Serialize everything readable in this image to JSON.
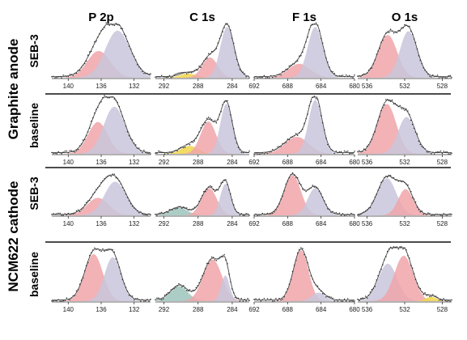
{
  "chart_data": {
    "type": "line",
    "description_free": true,
    "column_titles": [
      "P 2p",
      "C 1s",
      "F 1s",
      "O 1s"
    ],
    "row_labels": [
      "SEB-3",
      "baseline",
      "SEB-3",
      "baseline"
    ],
    "group_labels": [
      "Graphite anode",
      "NCM622 cathode"
    ],
    "component_colors": {
      "pink": "#f0a4a9",
      "lavender": "#c9c6dc",
      "yellow": "#f0d64a",
      "teal": "#9cc4bc"
    },
    "columns": [
      {
        "xlim": [
          142,
          130
        ],
        "ticks": [
          140,
          136,
          132
        ]
      },
      {
        "xlim": [
          293,
          282
        ],
        "ticks": [
          292,
          288,
          284
        ]
      },
      {
        "xlim": [
          692,
          680
        ],
        "ticks": [
          692,
          688,
          684,
          680
        ]
      },
      {
        "xlim": [
          537,
          527
        ],
        "ticks": [
          536,
          532,
          528
        ]
      }
    ],
    "panels": [
      {
        "row": 0,
        "col": 0,
        "components": [
          {
            "color": "pink",
            "center": 136.3,
            "height": 0.5,
            "width": 1.4
          },
          {
            "color": "lavender",
            "center": 134.0,
            "height": 0.88,
            "width": 1.5
          }
        ]
      },
      {
        "row": 0,
        "col": 1,
        "components": [
          {
            "color": "yellow",
            "center": 289.2,
            "height": 0.08,
            "width": 0.9
          },
          {
            "color": "pink",
            "center": 286.6,
            "height": 0.38,
            "width": 0.9
          },
          {
            "color": "lavender",
            "center": 284.6,
            "height": 0.95,
            "width": 0.8
          }
        ]
      },
      {
        "row": 0,
        "col": 2,
        "components": [
          {
            "color": "pink",
            "center": 686.6,
            "height": 0.26,
            "width": 1.3
          },
          {
            "color": "lavender",
            "center": 684.7,
            "height": 0.95,
            "width": 0.9
          }
        ]
      },
      {
        "row": 0,
        "col": 3,
        "components": [
          {
            "color": "pink",
            "center": 533.8,
            "height": 0.8,
            "width": 1.0
          },
          {
            "color": "lavender",
            "center": 531.6,
            "height": 0.87,
            "width": 0.9
          }
        ]
      },
      {
        "row": 1,
        "col": 0,
        "components": [
          {
            "color": "pink",
            "center": 136.4,
            "height": 0.56,
            "width": 1.2
          },
          {
            "color": "lavender",
            "center": 134.4,
            "height": 0.83,
            "width": 1.3
          }
        ]
      },
      {
        "row": 1,
        "col": 1,
        "components": [
          {
            "color": "yellow",
            "center": 289.0,
            "height": 0.14,
            "width": 1.0
          },
          {
            "color": "pink",
            "center": 286.8,
            "height": 0.57,
            "width": 0.9
          },
          {
            "color": "lavender",
            "center": 284.7,
            "height": 0.88,
            "width": 0.7
          }
        ]
      },
      {
        "row": 1,
        "col": 2,
        "components": [
          {
            "color": "pink",
            "center": 686.9,
            "height": 0.3,
            "width": 1.4
          },
          {
            "color": "lavender",
            "center": 684.7,
            "height": 0.95,
            "width": 0.8
          }
        ]
      },
      {
        "row": 1,
        "col": 3,
        "components": [
          {
            "color": "pink",
            "center": 533.9,
            "height": 0.88,
            "width": 1.0
          },
          {
            "color": "lavender",
            "center": 531.8,
            "height": 0.65,
            "width": 0.9
          }
        ]
      },
      {
        "row": 2,
        "col": 0,
        "components": [
          {
            "color": "pink",
            "center": 136.4,
            "height": 0.4,
            "width": 1.3
          },
          {
            "color": "lavender",
            "center": 134.3,
            "height": 0.77,
            "width": 1.3
          }
        ]
      },
      {
        "row": 2,
        "col": 1,
        "components": [
          {
            "color": "teal",
            "center": 290.2,
            "height": 0.17,
            "width": 1.0
          },
          {
            "color": "pink",
            "center": 286.7,
            "height": 0.62,
            "width": 0.9
          },
          {
            "color": "lavender",
            "center": 284.8,
            "height": 0.72,
            "width": 0.6
          }
        ]
      },
      {
        "row": 2,
        "col": 2,
        "components": [
          {
            "color": "pink",
            "center": 687.4,
            "height": 0.92,
            "width": 1.0
          },
          {
            "color": "lavender",
            "center": 684.7,
            "height": 0.62,
            "width": 0.9
          }
        ]
      },
      {
        "row": 2,
        "col": 3,
        "components": [
          {
            "color": "lavender",
            "center": 533.9,
            "height": 0.85,
            "width": 1.0
          },
          {
            "color": "pink",
            "center": 531.9,
            "height": 0.6,
            "width": 0.8
          }
        ]
      },
      {
        "row": 3,
        "col": 0,
        "components": [
          {
            "color": "pink",
            "center": 136.9,
            "height": 0.88,
            "width": 1.1
          },
          {
            "color": "lavender",
            "center": 134.6,
            "height": 0.82,
            "width": 1.0
          }
        ]
      },
      {
        "row": 3,
        "col": 1,
        "components": [
          {
            "color": "teal",
            "center": 290.2,
            "height": 0.28,
            "width": 1.0
          },
          {
            "color": "pink",
            "center": 286.3,
            "height": 0.78,
            "width": 1.1
          },
          {
            "color": "lavender",
            "center": 284.8,
            "height": 0.48,
            "width": 0.5
          }
        ]
      },
      {
        "row": 3,
        "col": 2,
        "components": [
          {
            "color": "pink",
            "center": 686.4,
            "height": 0.95,
            "width": 0.9
          },
          {
            "color": "lavender",
            "center": 684.3,
            "height": 0.16,
            "width": 0.8
          }
        ]
      },
      {
        "row": 3,
        "col": 3,
        "components": [
          {
            "color": "lavender",
            "center": 533.8,
            "height": 0.7,
            "width": 1.0
          },
          {
            "color": "pink",
            "center": 532.1,
            "height": 0.85,
            "width": 1.0
          },
          {
            "color": "yellow",
            "center": 529.2,
            "height": 0.08,
            "width": 0.6
          }
        ]
      }
    ]
  }
}
